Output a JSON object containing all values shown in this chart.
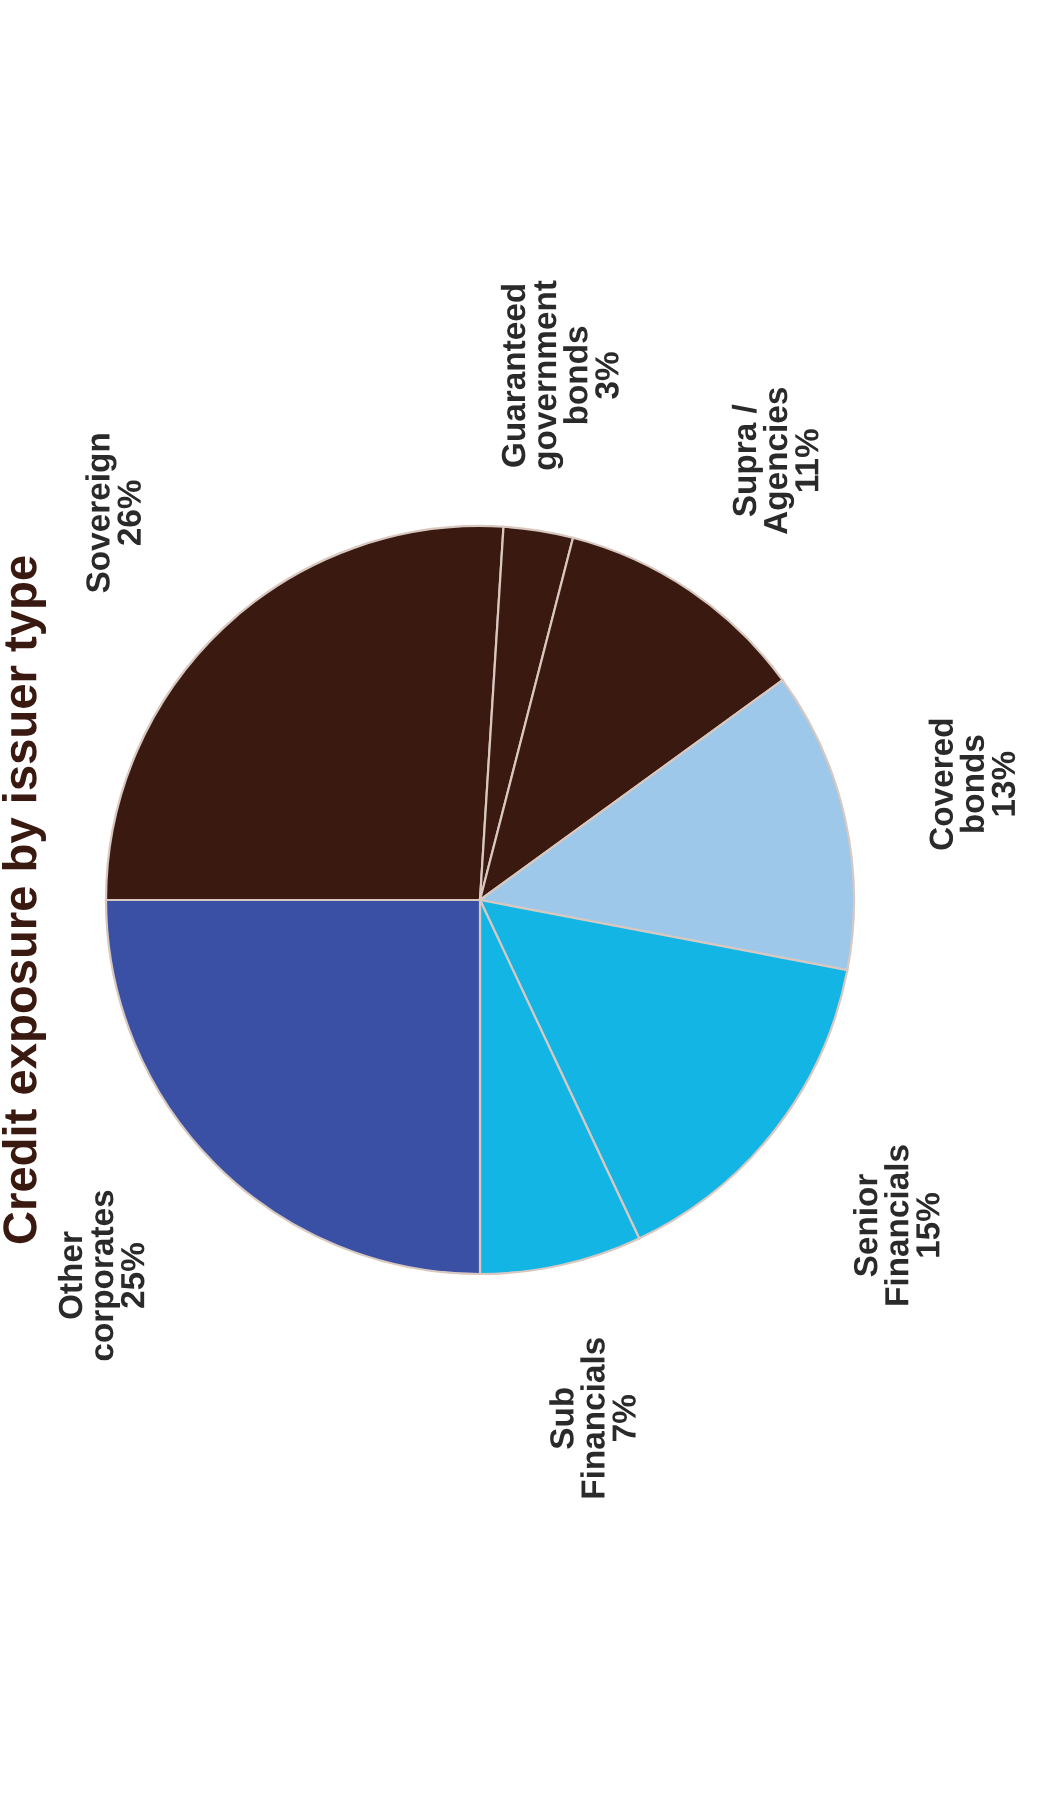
{
  "chart_data": {
    "type": "pie",
    "title": "Credit exposure by issuer type",
    "categories": [
      "Sovereign",
      "Guaranteed\ngovernment\nbonds",
      "Supra /\nAgencies",
      "Covered\nbonds",
      "Senior\nFinancials",
      "Sub\nFinancials",
      "Other\ncorporates"
    ],
    "values": [
      26,
      3,
      11,
      13,
      15,
      7,
      25
    ],
    "value_labels": [
      "26%",
      "3%",
      "11%",
      "13%",
      "15%",
      "7%",
      "25%"
    ],
    "colors": [
      "#3a1a10",
      "#3a1a10",
      "#3a1a10",
      "#9dc8ea",
      "#13b5e5",
      "#13b5e5",
      "#3a50a4"
    ]
  }
}
